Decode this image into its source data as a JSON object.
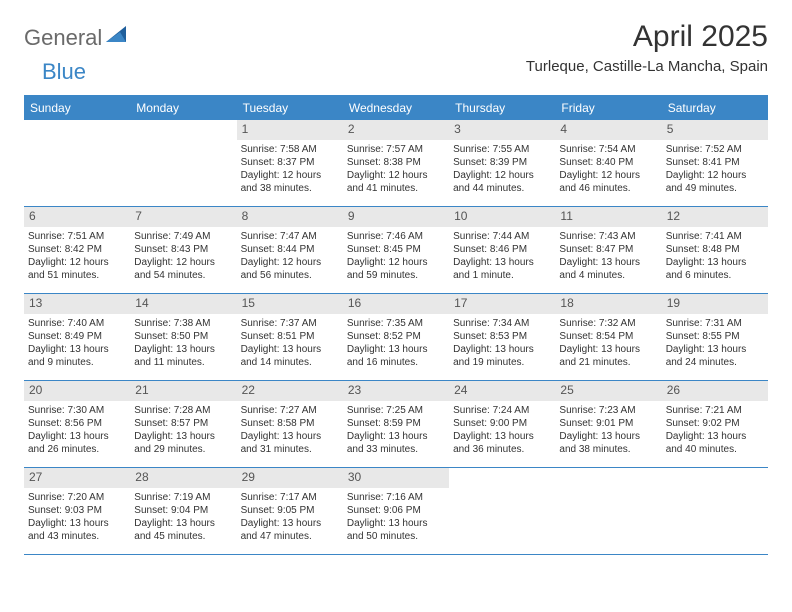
{
  "logo": {
    "text1": "General",
    "text2": "Blue"
  },
  "title": "April 2025",
  "location": "Turleque, Castille-La Mancha, Spain",
  "colors": {
    "accent": "#3b86c6",
    "gray_band": "#e8e8e8",
    "text": "#333333",
    "logo_gray": "#6a6a6a"
  },
  "day_headers": [
    "Sunday",
    "Monday",
    "Tuesday",
    "Wednesday",
    "Thursday",
    "Friday",
    "Saturday"
  ],
  "weeks": [
    [
      null,
      null,
      {
        "n": "1",
        "lines": [
          "Sunrise: 7:58 AM",
          "Sunset: 8:37 PM",
          "Daylight: 12 hours",
          "and 38 minutes."
        ]
      },
      {
        "n": "2",
        "lines": [
          "Sunrise: 7:57 AM",
          "Sunset: 8:38 PM",
          "Daylight: 12 hours",
          "and 41 minutes."
        ]
      },
      {
        "n": "3",
        "lines": [
          "Sunrise: 7:55 AM",
          "Sunset: 8:39 PM",
          "Daylight: 12 hours",
          "and 44 minutes."
        ]
      },
      {
        "n": "4",
        "lines": [
          "Sunrise: 7:54 AM",
          "Sunset: 8:40 PM",
          "Daylight: 12 hours",
          "and 46 minutes."
        ]
      },
      {
        "n": "5",
        "lines": [
          "Sunrise: 7:52 AM",
          "Sunset: 8:41 PM",
          "Daylight: 12 hours",
          "and 49 minutes."
        ]
      }
    ],
    [
      {
        "n": "6",
        "lines": [
          "Sunrise: 7:51 AM",
          "Sunset: 8:42 PM",
          "Daylight: 12 hours",
          "and 51 minutes."
        ]
      },
      {
        "n": "7",
        "lines": [
          "Sunrise: 7:49 AM",
          "Sunset: 8:43 PM",
          "Daylight: 12 hours",
          "and 54 minutes."
        ]
      },
      {
        "n": "8",
        "lines": [
          "Sunrise: 7:47 AM",
          "Sunset: 8:44 PM",
          "Daylight: 12 hours",
          "and 56 minutes."
        ]
      },
      {
        "n": "9",
        "lines": [
          "Sunrise: 7:46 AM",
          "Sunset: 8:45 PM",
          "Daylight: 12 hours",
          "and 59 minutes."
        ]
      },
      {
        "n": "10",
        "lines": [
          "Sunrise: 7:44 AM",
          "Sunset: 8:46 PM",
          "Daylight: 13 hours",
          "and 1 minute."
        ]
      },
      {
        "n": "11",
        "lines": [
          "Sunrise: 7:43 AM",
          "Sunset: 8:47 PM",
          "Daylight: 13 hours",
          "and 4 minutes."
        ]
      },
      {
        "n": "12",
        "lines": [
          "Sunrise: 7:41 AM",
          "Sunset: 8:48 PM",
          "Daylight: 13 hours",
          "and 6 minutes."
        ]
      }
    ],
    [
      {
        "n": "13",
        "lines": [
          "Sunrise: 7:40 AM",
          "Sunset: 8:49 PM",
          "Daylight: 13 hours",
          "and 9 minutes."
        ]
      },
      {
        "n": "14",
        "lines": [
          "Sunrise: 7:38 AM",
          "Sunset: 8:50 PM",
          "Daylight: 13 hours",
          "and 11 minutes."
        ]
      },
      {
        "n": "15",
        "lines": [
          "Sunrise: 7:37 AM",
          "Sunset: 8:51 PM",
          "Daylight: 13 hours",
          "and 14 minutes."
        ]
      },
      {
        "n": "16",
        "lines": [
          "Sunrise: 7:35 AM",
          "Sunset: 8:52 PM",
          "Daylight: 13 hours",
          "and 16 minutes."
        ]
      },
      {
        "n": "17",
        "lines": [
          "Sunrise: 7:34 AM",
          "Sunset: 8:53 PM",
          "Daylight: 13 hours",
          "and 19 minutes."
        ]
      },
      {
        "n": "18",
        "lines": [
          "Sunrise: 7:32 AM",
          "Sunset: 8:54 PM",
          "Daylight: 13 hours",
          "and 21 minutes."
        ]
      },
      {
        "n": "19",
        "lines": [
          "Sunrise: 7:31 AM",
          "Sunset: 8:55 PM",
          "Daylight: 13 hours",
          "and 24 minutes."
        ]
      }
    ],
    [
      {
        "n": "20",
        "lines": [
          "Sunrise: 7:30 AM",
          "Sunset: 8:56 PM",
          "Daylight: 13 hours",
          "and 26 minutes."
        ]
      },
      {
        "n": "21",
        "lines": [
          "Sunrise: 7:28 AM",
          "Sunset: 8:57 PM",
          "Daylight: 13 hours",
          "and 29 minutes."
        ]
      },
      {
        "n": "22",
        "lines": [
          "Sunrise: 7:27 AM",
          "Sunset: 8:58 PM",
          "Daylight: 13 hours",
          "and 31 minutes."
        ]
      },
      {
        "n": "23",
        "lines": [
          "Sunrise: 7:25 AM",
          "Sunset: 8:59 PM",
          "Daylight: 13 hours",
          "and 33 minutes."
        ]
      },
      {
        "n": "24",
        "lines": [
          "Sunrise: 7:24 AM",
          "Sunset: 9:00 PM",
          "Daylight: 13 hours",
          "and 36 minutes."
        ]
      },
      {
        "n": "25",
        "lines": [
          "Sunrise: 7:23 AM",
          "Sunset: 9:01 PM",
          "Daylight: 13 hours",
          "and 38 minutes."
        ]
      },
      {
        "n": "26",
        "lines": [
          "Sunrise: 7:21 AM",
          "Sunset: 9:02 PM",
          "Daylight: 13 hours",
          "and 40 minutes."
        ]
      }
    ],
    [
      {
        "n": "27",
        "lines": [
          "Sunrise: 7:20 AM",
          "Sunset: 9:03 PM",
          "Daylight: 13 hours",
          "and 43 minutes."
        ]
      },
      {
        "n": "28",
        "lines": [
          "Sunrise: 7:19 AM",
          "Sunset: 9:04 PM",
          "Daylight: 13 hours",
          "and 45 minutes."
        ]
      },
      {
        "n": "29",
        "lines": [
          "Sunrise: 7:17 AM",
          "Sunset: 9:05 PM",
          "Daylight: 13 hours",
          "and 47 minutes."
        ]
      },
      {
        "n": "30",
        "lines": [
          "Sunrise: 7:16 AM",
          "Sunset: 9:06 PM",
          "Daylight: 13 hours",
          "and 50 minutes."
        ]
      },
      null,
      null,
      null
    ]
  ]
}
